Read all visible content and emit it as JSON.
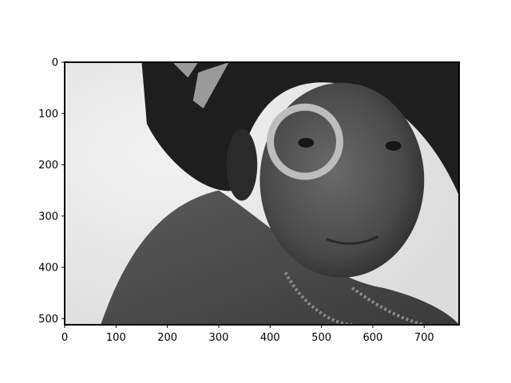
{
  "chart_data": {
    "type": "image",
    "title": "",
    "xlabel": "",
    "ylabel": "",
    "xlim": [
      0,
      768
    ],
    "ylim": [
      512,
      0
    ],
    "x_ticks": [
      0,
      100,
      200,
      300,
      400,
      500,
      600,
      700
    ],
    "y_ticks": [
      0,
      100,
      200,
      300,
      400,
      500
    ],
    "image": {
      "description_name": "grayscale-portrait-photo",
      "colormap": "gray",
      "width": 768,
      "height": 512
    },
    "grid": false
  }
}
